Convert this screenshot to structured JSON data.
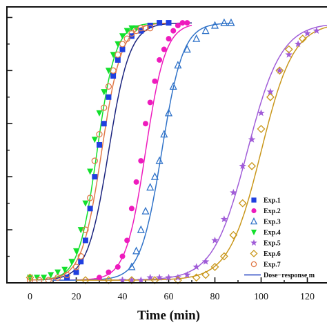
{
  "chart_data": {
    "type": "scatter",
    "title": "",
    "xlabel": "Time (min)",
    "ylabel": "",
    "xlim": [
      -10,
      130
    ],
    "ylim": [
      0,
      1.04
    ],
    "xticks": [
      0,
      20,
      40,
      60,
      80,
      100,
      120
    ],
    "xtick_labels": [
      "0",
      "20",
      "40",
      "60",
      "80",
      "100",
      "120"
    ],
    "yticks": [
      0,
      0.2,
      0.4,
      0.6,
      0.8,
      1.0
    ],
    "grid": false,
    "legend_position": "bottom-right",
    "fit_label": "Dose−response m",
    "fit_color": "#1f3fbf",
    "series": [
      {
        "name": "Exp.1",
        "marker": "square",
        "color": "#1f3fe0",
        "fit_color": "#1a237e",
        "x0": 34,
        "k": 4.6,
        "fit_x": [
          0,
          70
        ],
        "x": [
          16,
          20,
          22,
          24,
          26,
          28,
          30,
          32,
          34,
          36,
          38,
          40,
          44,
          48,
          52,
          56,
          60
        ],
        "y": [
          0.02,
          0.04,
          0.08,
          0.16,
          0.28,
          0.4,
          0.52,
          0.6,
          0.7,
          0.78,
          0.84,
          0.88,
          0.93,
          0.95,
          0.97,
          0.98,
          0.98
        ]
      },
      {
        "name": "Exp.2",
        "marker": "circle",
        "color": "#ee1bbd",
        "fit_color": "#ee1bbd",
        "x0": 50,
        "k": 4.3,
        "fit_x": [
          10,
          70
        ],
        "x": [
          30,
          34,
          38,
          40,
          42,
          44,
          46,
          48,
          50,
          52,
          54,
          56,
          58,
          60,
          62,
          64,
          66,
          68
        ],
        "y": [
          0.02,
          0.04,
          0.06,
          0.1,
          0.16,
          0.28,
          0.38,
          0.46,
          0.6,
          0.68,
          0.76,
          0.84,
          0.88,
          0.92,
          0.95,
          0.97,
          0.98,
          0.98
        ]
      },
      {
        "name": "Exp.3",
        "marker": "triangle-open",
        "color": "#2f72c8",
        "fit_color": "#2f72c8",
        "x0": 57,
        "k": 4.6,
        "fit_x": [
          10,
          88
        ],
        "x": [
          44,
          46,
          48,
          50,
          52,
          54,
          56,
          58,
          60,
          62,
          64,
          68,
          72,
          76,
          80,
          84,
          87
        ],
        "y": [
          0.06,
          0.12,
          0.2,
          0.27,
          0.36,
          0.4,
          0.46,
          0.56,
          0.64,
          0.74,
          0.82,
          0.88,
          0.92,
          0.95,
          0.97,
          0.98,
          0.98
        ]
      },
      {
        "name": "Exp.4",
        "marker": "triangle-down",
        "color": "#12e02c",
        "fit_color": "#12e02c",
        "x0": 29,
        "k": 4.0,
        "fit_x": [
          0,
          55
        ],
        "x": [
          0,
          3,
          6,
          9,
          12,
          15,
          18,
          20,
          22,
          24,
          26,
          28,
          30,
          32,
          34,
          36,
          38,
          40,
          42,
          44,
          46
        ],
        "y": [
          0.02,
          0.02,
          0.02,
          0.03,
          0.04,
          0.05,
          0.08,
          0.12,
          0.2,
          0.3,
          0.42,
          0.54,
          0.64,
          0.72,
          0.8,
          0.86,
          0.9,
          0.93,
          0.95,
          0.96,
          0.96
        ]
      },
      {
        "name": "Exp.5",
        "marker": "star",
        "color": "#a05cd8",
        "fit_color": "#a05cd8",
        "x0": 94,
        "k": 7.4,
        "fit_x": [
          30,
          130
        ],
        "x": [
          40,
          44,
          48,
          52,
          56,
          60,
          64,
          68,
          72,
          76,
          80,
          84,
          88,
          92,
          96,
          100,
          104,
          108,
          112,
          116,
          120,
          124
        ],
        "y": [
          0.01,
          0.01,
          0.01,
          0.02,
          0.02,
          0.02,
          0.02,
          0.03,
          0.06,
          0.08,
          0.16,
          0.24,
          0.34,
          0.44,
          0.54,
          0.64,
          0.72,
          0.8,
          0.86,
          0.9,
          0.94,
          0.95
        ]
      },
      {
        "name": "Exp.6",
        "marker": "diamond-open",
        "color": "#c9971b",
        "fit_color": "#c9971b",
        "x0": 100,
        "k": 7.0,
        "fit_x": [
          20,
          130
        ],
        "x": [
          0,
          24,
          34,
          44,
          54,
          64,
          72,
          76,
          80,
          84,
          88,
          92,
          96,
          100,
          104,
          108,
          112,
          118
        ],
        "y": [
          0.02,
          0.01,
          0.01,
          0.01,
          0.01,
          0.01,
          0.02,
          0.03,
          0.06,
          0.1,
          0.18,
          0.3,
          0.44,
          0.58,
          0.7,
          0.8,
          0.88,
          0.92
        ]
      },
      {
        "name": "Exp.7",
        "marker": "circle-open",
        "color": "#e07a4a",
        "fit_color": "#e07a4a",
        "x0": 31,
        "k": 4.3,
        "fit_x": [
          0,
          60
        ],
        "x": [
          0,
          4,
          8,
          12,
          16,
          20,
          22,
          24,
          26,
          28,
          30,
          32,
          34,
          36,
          38,
          40,
          42,
          44,
          46,
          48,
          50,
          52
        ],
        "y": [
          0.01,
          0.01,
          0.01,
          0.02,
          0.03,
          0.06,
          0.1,
          0.2,
          0.32,
          0.46,
          0.56,
          0.66,
          0.74,
          0.8,
          0.86,
          0.9,
          0.92,
          0.94,
          0.95,
          0.96,
          0.96,
          0.96
        ]
      }
    ]
  }
}
